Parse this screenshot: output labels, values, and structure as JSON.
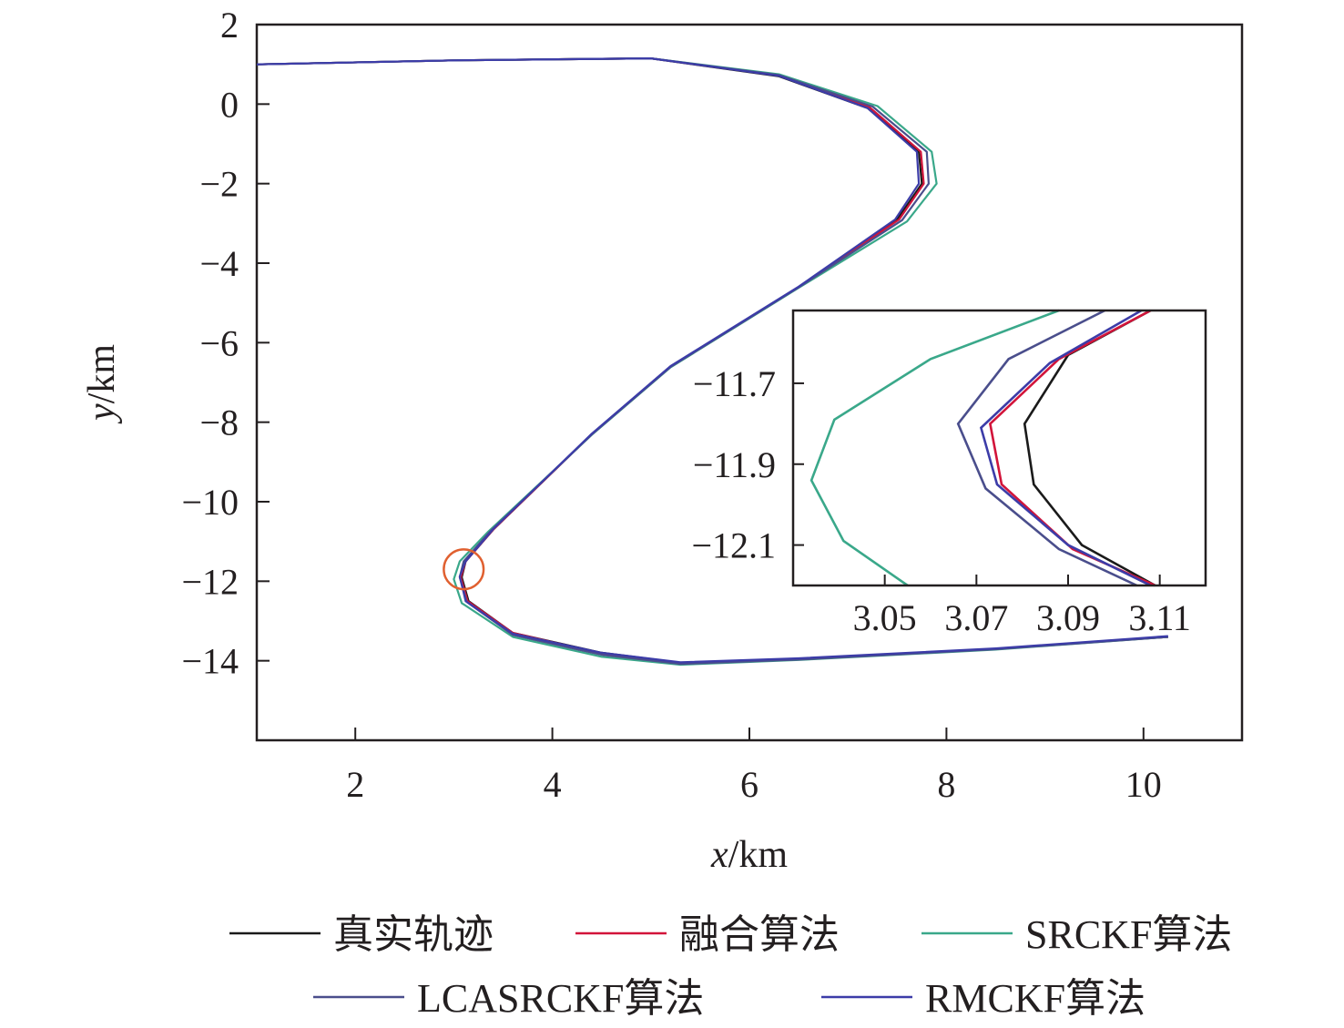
{
  "chart_data": [
    {
      "type": "line",
      "xlabel_italic": "x",
      "xlabel_unit": "/km",
      "ylabel_italic": "y",
      "ylabel_unit": "/km",
      "xlim": [
        1,
        11
      ],
      "ylim": [
        -16,
        2
      ],
      "x_ticks": [
        2,
        4,
        6,
        8,
        10
      ],
      "y_ticks": [
        2,
        0,
        -2,
        -4,
        -6,
        -8,
        -10,
        -12,
        -14
      ],
      "x_tick_labels": [
        "2",
        "4",
        "6",
        "8",
        "10"
      ],
      "y_tick_labels": [
        "2",
        "0",
        "−2",
        "−4",
        "−6",
        "−8",
        "−10",
        "−12",
        "−14"
      ],
      "grid": false,
      "zoom_circle": {
        "cx": 3.1,
        "cy": -11.7,
        "r": 0.5,
        "color": "#e06030"
      },
      "series": [
        {
          "name": "真实轨迹",
          "color": "#1a1a1a",
          "points": [
            [
              1.0,
              1.0
            ],
            [
              3.0,
              1.1
            ],
            [
              5.0,
              1.15
            ],
            [
              6.3,
              0.7
            ],
            [
              7.2,
              -0.1
            ],
            [
              7.72,
              -1.2
            ],
            [
              7.75,
              -2.0
            ],
            [
              7.5,
              -2.9
            ],
            [
              6.5,
              -4.6
            ],
            [
              5.2,
              -6.6
            ],
            [
              4.4,
              -8.3
            ],
            [
              3.4,
              -10.7
            ],
            [
              3.12,
              -11.5
            ],
            [
              3.08,
              -11.9
            ],
            [
              3.15,
              -12.5
            ],
            [
              3.6,
              -13.3
            ],
            [
              4.5,
              -13.8
            ],
            [
              5.3,
              -14.05
            ],
            [
              6.5,
              -13.95
            ],
            [
              8.5,
              -13.7
            ],
            [
              10.25,
              -13.4
            ]
          ]
        },
        {
          "name": "融合算法",
          "color": "#d2143a",
          "points": [
            [
              1.0,
              1.0
            ],
            [
              3.0,
              1.1
            ],
            [
              5.0,
              1.15
            ],
            [
              6.3,
              0.72
            ],
            [
              7.22,
              -0.08
            ],
            [
              7.74,
              -1.2
            ],
            [
              7.77,
              -2.0
            ],
            [
              7.52,
              -2.9
            ],
            [
              6.5,
              -4.6
            ],
            [
              5.2,
              -6.6
            ],
            [
              4.4,
              -8.3
            ],
            [
              3.4,
              -10.7
            ],
            [
              3.12,
              -11.5
            ],
            [
              3.07,
              -11.9
            ],
            [
              3.14,
              -12.5
            ],
            [
              3.6,
              -13.3
            ],
            [
              4.5,
              -13.82
            ],
            [
              5.3,
              -14.06
            ],
            [
              6.5,
              -13.96
            ],
            [
              8.5,
              -13.7
            ],
            [
              10.25,
              -13.4
            ]
          ]
        },
        {
          "name": "SRCKF算法",
          "color": "#3aa88a",
          "points": [
            [
              1.0,
              1.0
            ],
            [
              3.0,
              1.1
            ],
            [
              5.0,
              1.15
            ],
            [
              6.3,
              0.75
            ],
            [
              7.3,
              -0.05
            ],
            [
              7.85,
              -1.2
            ],
            [
              7.9,
              -2.0
            ],
            [
              7.6,
              -2.95
            ],
            [
              6.5,
              -4.62
            ],
            [
              5.2,
              -6.62
            ],
            [
              4.4,
              -8.32
            ],
            [
              3.35,
              -10.75
            ],
            [
              3.06,
              -11.5
            ],
            [
              3.0,
              -11.95
            ],
            [
              3.08,
              -12.55
            ],
            [
              3.6,
              -13.4
            ],
            [
              4.5,
              -13.9
            ],
            [
              5.3,
              -14.1
            ],
            [
              6.5,
              -13.98
            ],
            [
              8.5,
              -13.72
            ],
            [
              10.25,
              -13.4
            ]
          ]
        },
        {
          "name": "LCASRCKF算法",
          "color": "#4a4e8c",
          "points": [
            [
              1.0,
              1.0
            ],
            [
              3.0,
              1.1
            ],
            [
              5.0,
              1.15
            ],
            [
              6.3,
              0.73
            ],
            [
              7.25,
              -0.06
            ],
            [
              7.8,
              -1.2
            ],
            [
              7.82,
              -2.0
            ],
            [
              7.55,
              -2.92
            ],
            [
              6.5,
              -4.61
            ],
            [
              5.2,
              -6.61
            ],
            [
              4.4,
              -8.31
            ],
            [
              3.38,
              -10.72
            ],
            [
              3.1,
              -11.5
            ],
            [
              3.06,
              -11.9
            ],
            [
              3.13,
              -12.52
            ],
            [
              3.6,
              -13.35
            ],
            [
              4.5,
              -13.85
            ],
            [
              5.3,
              -14.08
            ],
            [
              6.5,
              -13.97
            ],
            [
              8.5,
              -13.71
            ],
            [
              10.25,
              -13.4
            ]
          ]
        },
        {
          "name": "RMCKF算法",
          "color": "#3c3ca8",
          "points": [
            [
              1.0,
              1.0
            ],
            [
              3.0,
              1.1
            ],
            [
              5.0,
              1.15
            ],
            [
              6.3,
              0.71
            ],
            [
              7.2,
              -0.1
            ],
            [
              7.7,
              -1.2
            ],
            [
              7.72,
              -2.0
            ],
            [
              7.48,
              -2.9
            ],
            [
              6.5,
              -4.59
            ],
            [
              5.2,
              -6.59
            ],
            [
              4.4,
              -8.29
            ],
            [
              3.4,
              -10.69
            ],
            [
              3.12,
              -11.5
            ],
            [
              3.06,
              -11.88
            ],
            [
              3.12,
              -12.5
            ],
            [
              3.6,
              -13.32
            ],
            [
              4.5,
              -13.8
            ],
            [
              5.3,
              -14.04
            ],
            [
              6.5,
              -13.94
            ],
            [
              8.5,
              -13.69
            ],
            [
              10.25,
              -13.38
            ]
          ]
        }
      ]
    },
    {
      "type": "line",
      "role": "inset",
      "xlim": [
        3.03,
        3.12
      ],
      "ylim": [
        -12.2,
        -11.52
      ],
      "x_ticks": [
        3.05,
        3.07,
        3.09,
        3.11
      ],
      "y_ticks": [
        -11.7,
        -11.9,
        -12.1
      ],
      "x_tick_labels": [
        "3.05",
        "3.07",
        "3.09",
        "3.11"
      ],
      "y_tick_labels": [
        "−11.7",
        "−11.9",
        "−12.1"
      ],
      "series": [
        {
          "name": "真实轨迹",
          "color": "#1a1a1a",
          "points": [
            [
              3.108,
              -11.52
            ],
            [
              3.09,
              -11.63
            ],
            [
              3.0805,
              -11.8
            ],
            [
              3.0825,
              -11.95
            ],
            [
              3.093,
              -12.1
            ],
            [
              3.109,
              -12.2
            ]
          ]
        },
        {
          "name": "融合算法",
          "color": "#d2143a",
          "points": [
            [
              3.108,
              -11.52
            ],
            [
              3.088,
              -11.64
            ],
            [
              3.073,
              -11.8
            ],
            [
              3.0755,
              -11.95
            ],
            [
              3.091,
              -12.11
            ],
            [
              3.109,
              -12.2
            ]
          ]
        },
        {
          "name": "SRCKF算法",
          "color": "#3aa88a",
          "points": [
            [
              3.088,
              -11.52
            ],
            [
              3.06,
              -11.64
            ],
            [
              3.039,
              -11.79
            ],
            [
              3.034,
              -11.94
            ],
            [
              3.041,
              -12.09
            ],
            [
              3.055,
              -12.2
            ]
          ]
        },
        {
          "name": "LCASRCKF算法",
          "color": "#4a4e8c",
          "points": [
            [
              3.098,
              -11.52
            ],
            [
              3.077,
              -11.64
            ],
            [
              3.066,
              -11.8
            ],
            [
              3.072,
              -11.96
            ],
            [
              3.088,
              -12.11
            ],
            [
              3.105,
              -12.2
            ]
          ]
        },
        {
          "name": "RMCKF算法",
          "color": "#3c3ca8",
          "points": [
            [
              3.106,
              -11.52
            ],
            [
              3.086,
              -11.65
            ],
            [
              3.071,
              -11.81
            ],
            [
              3.0745,
              -11.95
            ],
            [
              3.09,
              -12.1
            ],
            [
              3.108,
              -12.2
            ]
          ]
        }
      ]
    }
  ],
  "legend": [
    {
      "label": "真实轨迹",
      "color": "#1a1a1a"
    },
    {
      "label": "融合算法",
      "color": "#d2143a"
    },
    {
      "label": "SRCKF算法",
      "color": "#3aa88a"
    },
    {
      "label": "LCASRCKF算法",
      "color": "#4a4e8c"
    },
    {
      "label": "RMCKF算法",
      "color": "#3c3ca8"
    }
  ]
}
